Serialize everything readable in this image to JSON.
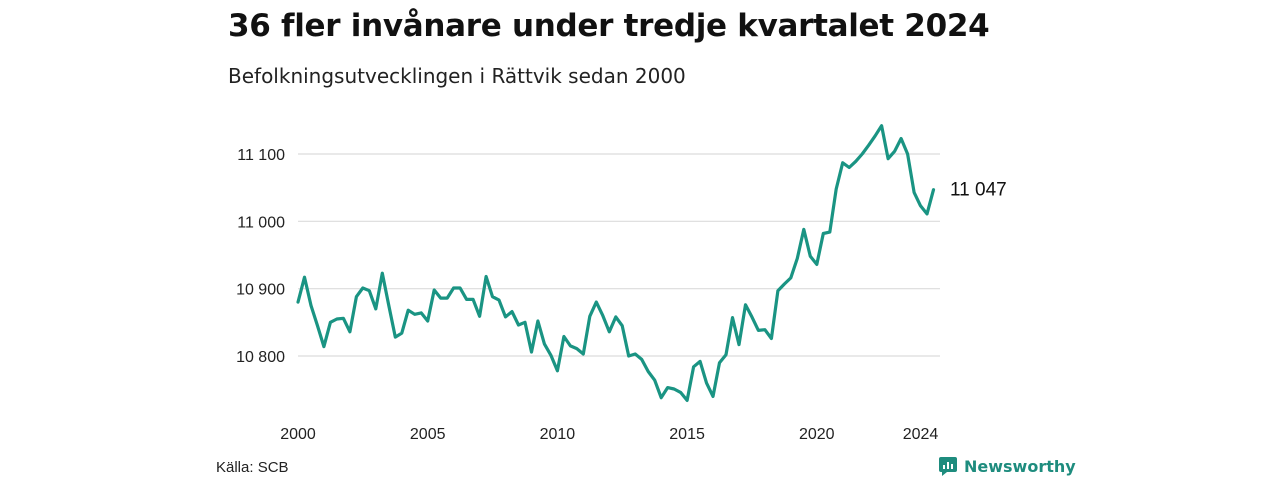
{
  "header": {
    "title": "36 fler invånare under tredje kvartalet 2024",
    "subtitle": "Befolkningsutvecklingen i Rättvik sedan 2000"
  },
  "footer": {
    "source": "Källa: SCB",
    "brand": "Newsworthy"
  },
  "colors": {
    "line": "#1a9483",
    "grid": "#dcdcdc",
    "brand": "#1e8c7e"
  },
  "icons": {
    "brand": "newsworthy-logo-icon"
  },
  "chart_data": {
    "type": "line",
    "title": "36 fler invånare under tredje kvartalet 2024",
    "subtitle": "Befolkningsutvecklingen i Rättvik sedan 2000",
    "xlim": [
      2000.0,
      2024.75
    ],
    "ylim": [
      10730,
      11160
    ],
    "yticks": [
      10800,
      10900,
      11000,
      11100
    ],
    "ytick_labels": [
      "10 800",
      "10 900",
      "11 000",
      "11 100"
    ],
    "xticks": [
      2000,
      2005,
      2010,
      2015,
      2020,
      2024
    ],
    "xtick_labels": [
      "2000",
      "2005",
      "2010",
      "2015",
      "2020",
      "2024"
    ],
    "grid": "horizontal",
    "end_label": "11 047",
    "series": [
      {
        "x": [
          2000.0,
          2000.25,
          2000.5,
          2000.75,
          2001.0,
          2001.25,
          2001.5,
          2001.75,
          2002.0,
          2002.25,
          2002.5,
          2002.75,
          2003.0,
          2003.25,
          2003.5,
          2003.75,
          2004.0,
          2004.25,
          2004.5,
          2004.75,
          2005.0,
          2005.25,
          2005.5,
          2005.75,
          2006.0,
          2006.25,
          2006.5,
          2006.75,
          2007.0,
          2007.25,
          2007.5,
          2007.75,
          2008.0,
          2008.25,
          2008.5,
          2008.75,
          2009.0,
          2009.25,
          2009.5,
          2009.75,
          2010.0,
          2010.25,
          2010.5,
          2010.75,
          2011.0,
          2011.25,
          2011.5,
          2011.75,
          2012.0,
          2012.25,
          2012.5,
          2012.75,
          2013.0,
          2013.25,
          2013.5,
          2013.75,
          2014.0,
          2014.25,
          2014.5,
          2014.75,
          2015.0,
          2015.25,
          2015.5,
          2015.75,
          2016.0,
          2016.25,
          2016.5,
          2016.75,
          2017.0,
          2017.25,
          2017.5,
          2017.75,
          2018.0,
          2018.25,
          2018.5,
          2018.75,
          2019.0,
          2019.25,
          2019.5,
          2019.75,
          2020.0,
          2020.25,
          2020.5,
          2020.75,
          2021.0,
          2021.25,
          2021.5,
          2021.75,
          2022.0,
          2022.25,
          2022.5,
          2022.75,
          2023.0,
          2023.25,
          2023.5,
          2023.75,
          2024.0,
          2024.25,
          2024.5
        ],
        "values": [
          10880,
          10917,
          10875,
          10845,
          10814,
          10850,
          10855,
          10856,
          10836,
          10888,
          10901,
          10897,
          10870,
          10923,
          10875,
          10828,
          10834,
          10868,
          10862,
          10864,
          10852,
          10898,
          10886,
          10886,
          10901,
          10901,
          10884,
          10884,
          10859,
          10918,
          10888,
          10883,
          10858,
          10866,
          10846,
          10850,
          10806,
          10852,
          10818,
          10801,
          10778,
          10829,
          10815,
          10811,
          10803,
          10859,
          10880,
          10860,
          10836,
          10858,
          10845,
          10800,
          10803,
          10795,
          10777,
          10764,
          10738,
          10753,
          10751,
          10746,
          10734,
          10784,
          10792,
          10760,
          10740,
          10790,
          10802,
          10857,
          10817,
          10876,
          10858,
          10838,
          10839,
          10826,
          10897,
          10907,
          10916,
          10945,
          10988,
          10948,
          10936,
          10982,
          10984,
          11048,
          11087,
          11080,
          11089,
          11100,
          11113,
          11127,
          11142,
          11093,
          11104,
          11123,
          11100,
          11043,
          11023,
          11011,
          11047
        ]
      }
    ]
  }
}
